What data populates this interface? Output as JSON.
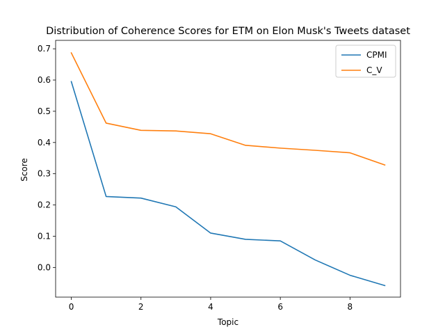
{
  "chart_data": {
    "type": "line",
    "title": "Distribution of Coherence Scores for ETM on Elon Musk's Tweets dataset",
    "xlabel": "Topic",
    "ylabel": "Score",
    "x": [
      0,
      1,
      2,
      3,
      4,
      5,
      6,
      7,
      8,
      9
    ],
    "xlim": [
      -0.45,
      9.45
    ],
    "ylim": [
      -0.095,
      0.727
    ],
    "xticks": [
      "0",
      "2",
      "4",
      "6",
      "8"
    ],
    "yticks": [
      "0.0",
      "0.1",
      "0.2",
      "0.3",
      "0.4",
      "0.5",
      "0.6",
      "0.7"
    ],
    "grid": false,
    "legend_position": "top-right",
    "series": [
      {
        "name": "CPMI",
        "color": "#1f77b4",
        "values": [
          0.595,
          0.227,
          0.222,
          0.194,
          0.11,
          0.09,
          0.085,
          0.024,
          -0.025,
          -0.058
        ]
      },
      {
        "name": "C_V",
        "color": "#ff7f0e",
        "values": [
          0.687,
          0.462,
          0.439,
          0.437,
          0.428,
          0.391,
          0.382,
          0.375,
          0.367,
          0.328
        ]
      }
    ]
  }
}
